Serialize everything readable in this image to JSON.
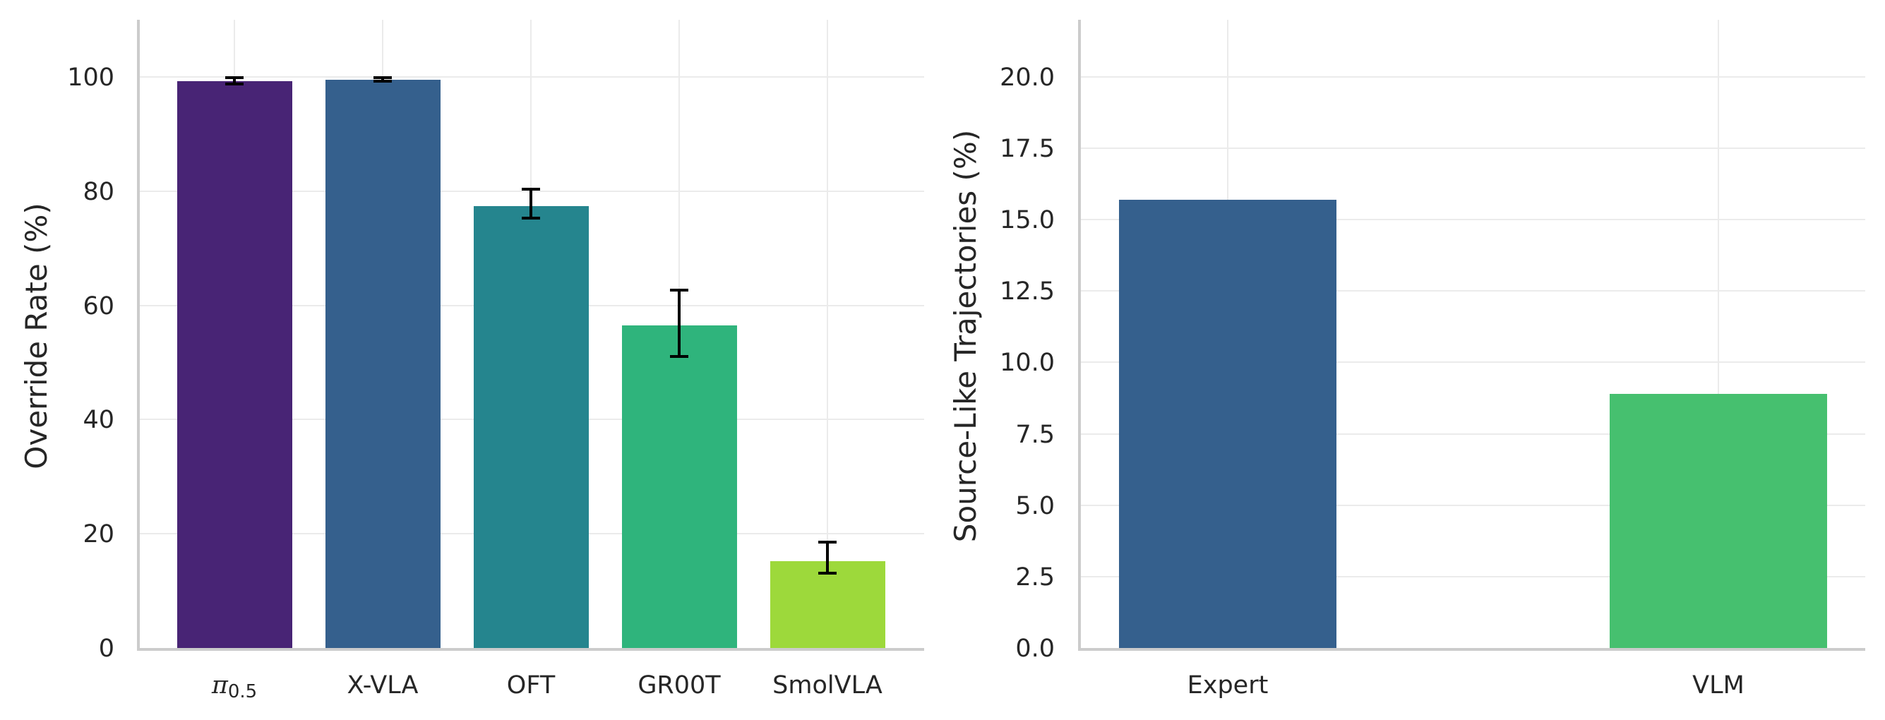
{
  "chart_data": [
    {
      "type": "bar",
      "title": "",
      "xlabel": "",
      "ylabel": "Override Rate (%)",
      "ylim": [
        0,
        110
      ],
      "yticks": [
        0,
        20,
        40,
        60,
        80,
        100
      ],
      "ytick_labels": [
        "0",
        "20",
        "40",
        "60",
        "80",
        "100"
      ],
      "grid": true,
      "legend": null,
      "categories": [
        "π0.5",
        "X-VLA",
        "OFT",
        "GR00T",
        "SmolVLA"
      ],
      "category_display": [
        {
          "main": "π",
          "sub": "0.5"
        },
        {
          "main": "X-VLA",
          "sub": ""
        },
        {
          "main": "OFT",
          "sub": ""
        },
        {
          "main": "GR00T",
          "sub": ""
        },
        {
          "main": "SmolVLA",
          "sub": ""
        }
      ],
      "values": [
        99.2,
        99.5,
        77.4,
        56.5,
        15.2
      ],
      "error_low": [
        98.8,
        99.2,
        75.3,
        51.0,
        13.1
      ],
      "error_high": [
        99.9,
        99.9,
        80.3,
        62.7,
        18.6
      ],
      "colors": [
        "#482475",
        "#35608d",
        "#25858e",
        "#2fb47c",
        "#9dd93b"
      ]
    },
    {
      "type": "bar",
      "title": "",
      "xlabel": "",
      "ylabel": "Source-Like Trajectories (%)",
      "ylim": [
        0,
        22
      ],
      "yticks": [
        0,
        2.5,
        5,
        7.5,
        10,
        12.5,
        15,
        17.5,
        20
      ],
      "ytick_labels": [
        "0.0",
        "2.5",
        "5.0",
        "7.5",
        "10.0",
        "12.5",
        "15.0",
        "17.5",
        "20.0"
      ],
      "grid": true,
      "legend": null,
      "categories": [
        "Expert",
        "VLM"
      ],
      "values": [
        15.7,
        8.9
      ],
      "colors": [
        "#35608d",
        "#46c06f"
      ]
    }
  ]
}
